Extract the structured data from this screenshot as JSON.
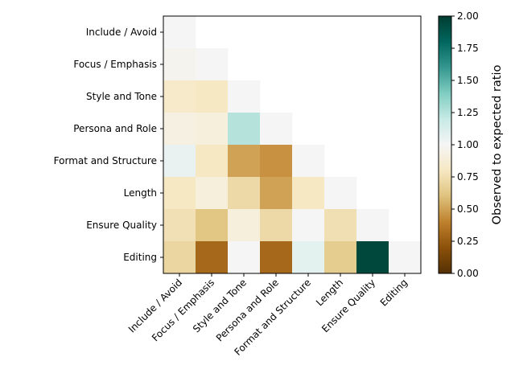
{
  "chart_data": {
    "type": "heatmap",
    "title": "",
    "xlabel": "",
    "ylabel": "",
    "categories": [
      "Include / Avoid",
      "Focus / Emphasis",
      "Style and Tone",
      "Persona and Role",
      "Format and Structure",
      "Length",
      "Ensure Quality",
      "Editing"
    ],
    "lower_triangle_only": true,
    "values": [
      [
        1.0
      ],
      [
        0.97,
        1.0
      ],
      [
        0.83,
        0.8,
        1.0
      ],
      [
        0.92,
        0.9,
        1.25,
        1.0
      ],
      [
        1.05,
        0.8,
        0.5,
        0.45,
        1.0
      ],
      [
        0.8,
        0.9,
        0.72,
        0.5,
        0.8,
        1.0
      ],
      [
        0.76,
        0.62,
        0.9,
        0.72,
        1.0,
        0.75,
        1.0
      ],
      [
        0.7,
        0.3,
        1.0,
        0.3,
        1.08,
        0.65,
        1.95,
        1.0
      ]
    ],
    "colormap": "BrBG",
    "colorbar": {
      "label": "Observed to expected ratio",
      "vmin": 0.0,
      "vmax": 2.0,
      "ticks": [
        "0.00",
        "0.25",
        "0.50",
        "0.75",
        "1.00",
        "1.25",
        "1.50",
        "1.75",
        "2.00"
      ]
    },
    "grid": false
  }
}
